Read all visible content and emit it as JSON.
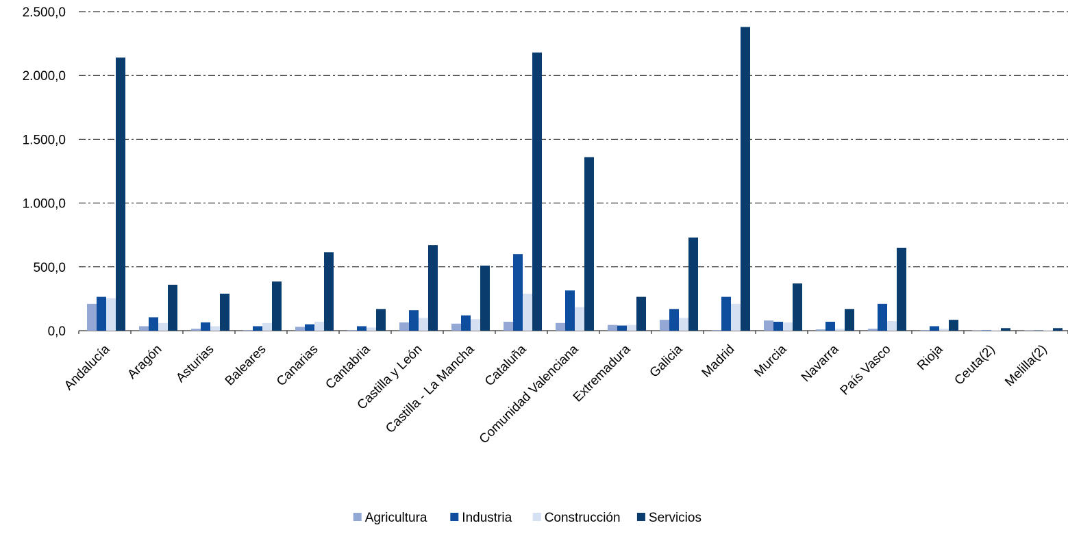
{
  "chart_data": {
    "type": "bar",
    "title": "",
    "xlabel": "",
    "ylabel": "",
    "ylim": [
      0,
      2500
    ],
    "y_ticks": [
      0,
      500,
      1000,
      1500,
      2000,
      2500
    ],
    "y_tick_labels": [
      "0,0",
      "500,0",
      "1.000,0",
      "1.500,0",
      "2.000,0",
      "2.500,0"
    ],
    "grid": true,
    "legend_position": "bottom",
    "categories": [
      "Andalucía",
      "Aragón",
      "Asturias",
      "Baleares",
      "Canarias",
      "Cantabria",
      "Castilla y León",
      "Castilla - La Mancha",
      "Cataluña",
      "Comunidad Valenciana",
      "Extremadura",
      "Galicia",
      "Madrid",
      "Murcia",
      "Navarra",
      "País Vasco",
      "Rioja",
      "Ceuta(2)",
      "Melilla(2)"
    ],
    "series": [
      {
        "name": "Agricultura",
        "color": "#94a8d6",
        "values": [
          210,
          35,
          15,
          5,
          30,
          5,
          65,
          55,
          70,
          60,
          45,
          85,
          5,
          80,
          10,
          15,
          5,
          2,
          2
        ]
      },
      {
        "name": "Industria",
        "color": "#0f4e9e",
        "values": [
          265,
          105,
          65,
          35,
          50,
          35,
          160,
          120,
          600,
          315,
          40,
          170,
          265,
          70,
          70,
          210,
          35,
          3,
          2
        ]
      },
      {
        "name": "Construcción",
        "color": "#d6e0f3",
        "values": [
          255,
          60,
          35,
          60,
          70,
          25,
          100,
          90,
          290,
          185,
          45,
          100,
          210,
          65,
          15,
          75,
          15,
          3,
          3
        ]
      },
      {
        "name": "Servicios",
        "color": "#0a3d6e",
        "values": [
          2140,
          360,
          290,
          385,
          615,
          170,
          670,
          510,
          2180,
          1360,
          265,
          730,
          2380,
          370,
          170,
          650,
          85,
          20,
          20
        ]
      }
    ]
  }
}
